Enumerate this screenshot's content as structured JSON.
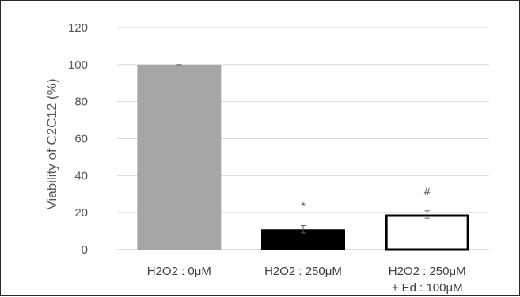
{
  "chart_data": {
    "type": "bar",
    "title": "",
    "xlabel": "",
    "ylabel": "Viability of C2C12 (%)",
    "ylim": [
      0,
      120
    ],
    "yticks": [
      0,
      20,
      40,
      60,
      80,
      100,
      120
    ],
    "grid": true,
    "categories": [
      [
        "H2O2 : 0μM"
      ],
      [
        "H2O2 : 250μM"
      ],
      [
        "H2O2 : 250μM",
        "+ Ed : 100μM"
      ]
    ],
    "values": [
      100,
      11,
      19
    ],
    "errors": [
      0,
      2,
      2
    ],
    "annotations": [
      "",
      "*",
      "#"
    ],
    "bar_fills": [
      "#a6a6a6",
      "#000000",
      "#ffffff"
    ],
    "bar_strokes": [
      "#a6a6a6",
      "#000000",
      "#000000"
    ],
    "colors": {
      "grid": "#d9d9d9",
      "axis": "#bfbfbf"
    }
  }
}
